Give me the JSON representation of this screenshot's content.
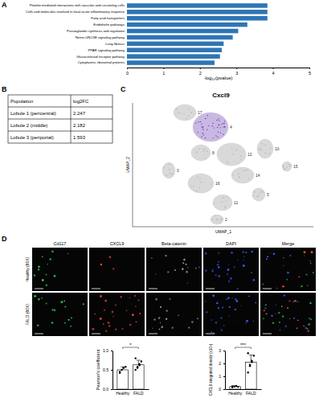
{
  "panel_labels": [
    "A",
    "B",
    "C",
    "D"
  ],
  "chart_data": [
    {
      "type": "bar",
      "orientation": "horizontal",
      "categories": [
        "Platelet-mediated interactions with vascular and circulating cells",
        "Cells and molecules involved in local acute inflammatory response",
        "Fatty acid transporters",
        "Endothelin pathways",
        "Prostaglandin synthesis and regulation",
        "Netrin-UNC5B signaling pathway",
        "Lung fibrosis",
        "PPAR signaling pathway",
        "Glucocorticoid receptor pathway",
        "Cytoplasmic ribosomal proteins"
      ],
      "values": [
        3.85,
        3.85,
        3.85,
        3.3,
        3.05,
        2.9,
        2.65,
        2.6,
        2.55,
        2.4
      ],
      "color": "#2e75b6",
      "x_label": "-log₁₀(pvalue)",
      "xlim": [
        0,
        5
      ],
      "xticks": [
        0,
        1,
        2,
        3,
        4,
        5
      ],
      "grid": false
    },
    {
      "type": "bar",
      "categories": [
        "Healthy",
        "FALD"
      ],
      "values": [
        0.5,
        0.63
      ],
      "errors": [
        0.08,
        0.12
      ],
      "points": [
        [
          0.42,
          0.5,
          0.55,
          0.58,
          0.45
        ],
        [
          0.5,
          0.58,
          0.65,
          0.72,
          0.8,
          0.55,
          0.62
        ]
      ],
      "color": "#ffffff",
      "y_label": "Pearson's coefficient",
      "annotation": "*",
      "ylim": [
        0,
        1
      ],
      "yticks": [
        {
          "value": 0,
          "label": "0.0"
        },
        {
          "value": 0.5,
          "label": "0.5"
        },
        {
          "value": 1,
          "label": "1.0"
        }
      ]
    },
    {
      "type": "bar",
      "categories": [
        "Healthy",
        "FALD"
      ],
      "values": [
        0.2,
        2.1
      ],
      "errors": [
        0.05,
        0.55
      ],
      "points": [
        [
          0.15,
          0.2,
          0.25,
          0.18,
          0.22
        ],
        [
          1.3,
          1.8,
          2.2,
          2.6,
          2.8,
          1.9,
          2.1
        ]
      ],
      "color": "#ffffff",
      "y_label": "CXCL9 integrated density (x10⁶)",
      "annotation": "***",
      "ylim": [
        0,
        3
      ],
      "yticks": [
        0,
        1,
        2,
        3
      ]
    }
  ],
  "table": {
    "header": [
      "Population",
      "log2FC"
    ],
    "rows": [
      [
        "Lobule 1 (pericentral)",
        2.247
      ],
      [
        "Lobule 2 (middle)",
        2.182
      ],
      [
        "Lobule 3 (periportal)",
        1.593
      ]
    ]
  },
  "umap": {
    "title": "Cxcl9",
    "x_label": "UMAP_1",
    "y_label": "UMAP_2",
    "cluster_labels": [
      "17",
      "4",
      "8",
      "12",
      "10",
      "14",
      "16",
      "11",
      "5",
      "0",
      "15",
      "2"
    ]
  },
  "micrographs": {
    "columns": [
      "Cd117",
      "CXCL9",
      "Beta-catenin",
      "DAPI",
      "Merge"
    ],
    "rows": [
      "Healthy (60X)",
      "FALD (60X)"
    ]
  }
}
